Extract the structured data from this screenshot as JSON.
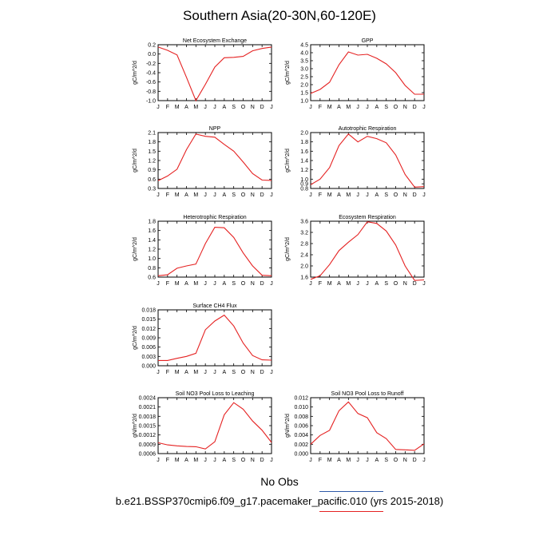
{
  "title": "Southern Asia(20-30N,60-120E)",
  "legend": {
    "obs_label": "No Obs",
    "obs_color": "#2f5aa8",
    "run_label": "b.e21.BSSP370cmip6.f09_g17.pacemaker_pacific.010 (yrs 2015-2018)",
    "run_color": "#e52222"
  },
  "line_color": "#e52222",
  "months": [
    "J",
    "F",
    "M",
    "A",
    "M",
    "J",
    "J",
    "A",
    "S",
    "O",
    "N",
    "D",
    "J"
  ],
  "chart_data": [
    {
      "type": "line",
      "title": "Net Ecosystem Exchange",
      "ylabel": "gC/m^2/d",
      "ylim": [
        -1.0,
        0.2
      ],
      "yticks": [
        "-1.0",
        "-0.8",
        "-0.6",
        "-0.4",
        "-0.2",
        "0.0",
        "0.2"
      ],
      "values": [
        0.15,
        0.08,
        -0.02,
        -0.5,
        -1.0,
        -0.65,
        -0.28,
        -0.08,
        -0.07,
        -0.05,
        0.07,
        0.12,
        0.15
      ]
    },
    {
      "type": "line",
      "title": "GPP",
      "ylabel": "gC/m^2/d",
      "ylim": [
        1.0,
        4.5
      ],
      "yticks": [
        "1.0",
        "1.5",
        "2.0",
        "2.5",
        "3.0",
        "3.5",
        "4.0",
        "4.5"
      ],
      "values": [
        1.45,
        1.7,
        2.15,
        3.25,
        4.05,
        3.85,
        3.9,
        3.65,
        3.3,
        2.75,
        1.95,
        1.4,
        1.4
      ]
    },
    {
      "type": "line",
      "title": "NPP",
      "ylabel": "gC/m^2/d",
      "ylim": [
        0.3,
        2.1
      ],
      "yticks": [
        "0.3",
        "0.6",
        "0.9",
        "1.2",
        "1.5",
        "1.8",
        "2.1"
      ],
      "values": [
        0.55,
        0.7,
        0.92,
        1.55,
        2.05,
        1.98,
        1.95,
        1.72,
        1.5,
        1.15,
        0.78,
        0.57,
        0.56
      ]
    },
    {
      "type": "line",
      "title": "Autotrophic Respiration",
      "ylabel": "gC/m^2/d",
      "ylim": [
        0.8,
        2.0
      ],
      "yticks": [
        "0.8",
        "0.9",
        "1.0",
        "1.2",
        "1.4",
        "1.6",
        "1.8",
        "2.0"
      ],
      "values": [
        0.88,
        1.0,
        1.25,
        1.72,
        1.97,
        1.8,
        1.92,
        1.87,
        1.78,
        1.52,
        1.1,
        0.83,
        0.84
      ]
    },
    {
      "type": "line",
      "title": "Heterotrophic Respiration",
      "ylabel": "gC/m^2/d",
      "ylim": [
        0.6,
        1.8
      ],
      "yticks": [
        "0.6",
        "0.8",
        "1.0",
        "1.2",
        "1.4",
        "1.6",
        "1.8"
      ],
      "values": [
        0.63,
        0.65,
        0.79,
        0.84,
        0.88,
        1.32,
        1.67,
        1.66,
        1.45,
        1.12,
        0.84,
        0.64,
        0.63
      ]
    },
    {
      "type": "line",
      "title": "Ecosystem Respiration",
      "ylabel": "gC/m^2/d",
      "ylim": [
        1.6,
        3.6
      ],
      "yticks": [
        "1.6",
        "2.0",
        "2.4",
        "2.8",
        "3.2",
        "3.6"
      ],
      "values": [
        1.52,
        1.65,
        2.05,
        2.55,
        2.85,
        3.12,
        3.58,
        3.52,
        3.25,
        2.75,
        2.0,
        1.48,
        1.5
      ]
    },
    {
      "type": "line",
      "title": "Surface CH4 Flux",
      "ylabel": "gC/m^2/d",
      "ylim": [
        0.0,
        0.018
      ],
      "yticks": [
        "0.000",
        "0.003",
        "0.006",
        "0.009",
        "0.012",
        "0.015",
        "0.018"
      ],
      "values": [
        0.0017,
        0.0017,
        0.0024,
        0.003,
        0.004,
        0.0116,
        0.0144,
        0.0163,
        0.0128,
        0.0073,
        0.0033,
        0.0019,
        0.0018
      ]
    },
    {
      "type": "line",
      "title": "Soil NO3 Pool Loss to Leaching",
      "ylabel": "gN/m^2/d",
      "ylim": [
        0.0006,
        0.0024
      ],
      "yticks": [
        "0.0006",
        "0.0009",
        "0.0012",
        "0.0015",
        "0.0018",
        "0.0021",
        "0.0024"
      ],
      "values": [
        0.00095,
        0.00088,
        0.00085,
        0.00083,
        0.00082,
        0.00075,
        0.00098,
        0.00185,
        0.00224,
        0.00203,
        0.00165,
        0.00135,
        0.00096
      ]
    },
    {
      "type": "line",
      "title": "Soil NO3 Pool Loss to Runoff",
      "ylabel": "gN/m^2/d",
      "ylim": [
        0.0,
        0.012
      ],
      "yticks": [
        "0.000",
        "0.002",
        "0.004",
        "0.006",
        "0.008",
        "0.010",
        "0.012"
      ],
      "values": [
        0.002,
        0.0039,
        0.005,
        0.0092,
        0.0111,
        0.0086,
        0.0077,
        0.0045,
        0.0032,
        0.0009,
        0.0008,
        0.0007,
        0.0021
      ]
    }
  ]
}
